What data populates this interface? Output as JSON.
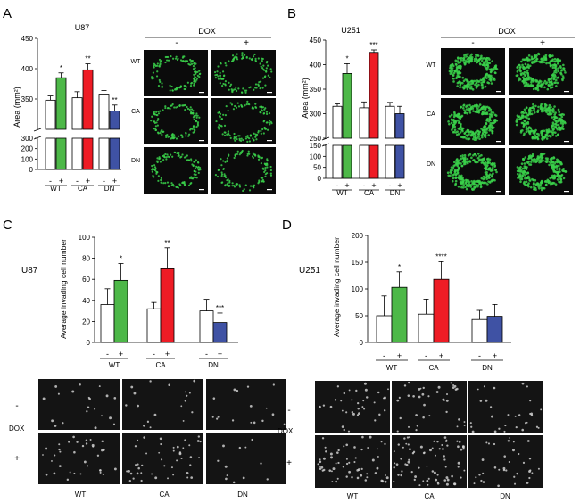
{
  "panels": {
    "A": {
      "letter": "A",
      "cell_line": "U87",
      "treatment": "DOX",
      "minus": "-",
      "plus": "+",
      "ylabel": "Area (mm²)",
      "groups": [
        "WT",
        "CA",
        "DN"
      ]
    },
    "B": {
      "letter": "B",
      "cell_line": "U251",
      "treatment": "DOX",
      "minus": "-",
      "plus": "+",
      "ylabel": "Area (mm²)",
      "groups": [
        "WT",
        "CA",
        "DN"
      ]
    },
    "C": {
      "letter": "C",
      "cell_line": "U87",
      "treatment": "DOX",
      "minus": "-",
      "plus": "+",
      "ylabel": "Average invading cell number",
      "groups": [
        "WT",
        "CA",
        "DN"
      ]
    },
    "D": {
      "letter": "D",
      "cell_line": "U251",
      "treatment": "DOX",
      "minus": "-",
      "plus": "+",
      "ylabel": "Average invading cell number",
      "groups": [
        "WT",
        "CA",
        "DN"
      ]
    }
  },
  "colors": {
    "WT": "#4db848",
    "CA": "#ee1c25",
    "DN": "#3f52a4",
    "control": "#ffffff",
    "spheroid": "#39d04a",
    "image_bg": "#0b0b0b"
  },
  "chart_data": [
    {
      "panel": "A",
      "type": "bar",
      "categories": [
        "WT",
        "CA",
        "DN"
      ],
      "subcategories": [
        "-",
        "+"
      ],
      "ylabel": "Area (mm²)",
      "ylim_lower": [
        0,
        300
      ],
      "ylim_upper": [
        300,
        450
      ],
      "yticks": [
        0,
        100,
        200,
        300,
        350,
        400,
        450
      ],
      "series": [
        {
          "name": "-",
          "values": [
            348,
            352,
            358
          ],
          "errors": [
            7,
            10,
            6
          ]
        },
        {
          "name": "+",
          "values": [
            385,
            398,
            330
          ],
          "errors": [
            8,
            10,
            10
          ]
        }
      ],
      "significance": [
        "*",
        "**",
        "**"
      ]
    },
    {
      "panel": "B",
      "type": "bar",
      "categories": [
        "WT",
        "CA",
        "DN"
      ],
      "subcategories": [
        "-",
        "+"
      ],
      "ylabel": "Area (mm²)",
      "ylim_lower": [
        0,
        150
      ],
      "ylim_upper": [
        250,
        450
      ],
      "yticks": [
        0,
        50,
        100,
        150,
        250,
        300,
        350,
        400,
        450
      ],
      "series": [
        {
          "name": "-",
          "values": [
            315,
            312,
            315
          ],
          "errors": [
            5,
            12,
            8
          ]
        },
        {
          "name": "+",
          "values": [
            382,
            425,
            300
          ],
          "errors": [
            20,
            5,
            15
          ]
        }
      ],
      "significance": [
        "*",
        "***",
        ""
      ]
    },
    {
      "panel": "C",
      "type": "bar",
      "categories": [
        "WT",
        "CA",
        "DN"
      ],
      "subcategories": [
        "-",
        "+"
      ],
      "ylabel": "Average invading cell number",
      "ylim": [
        0,
        100
      ],
      "yticks": [
        0,
        20,
        40,
        60,
        80,
        100
      ],
      "series": [
        {
          "name": "-",
          "values": [
            36,
            32,
            30
          ],
          "errors": [
            15,
            6,
            11
          ]
        },
        {
          "name": "+",
          "values": [
            59,
            70,
            19
          ],
          "errors": [
            16,
            20,
            9
          ]
        }
      ],
      "significance": [
        "*",
        "**",
        "***"
      ]
    },
    {
      "panel": "D",
      "type": "bar",
      "categories": [
        "WT",
        "CA",
        "DN"
      ],
      "subcategories": [
        "-",
        "+"
      ],
      "ylabel": "Average invading cell number",
      "ylim": [
        0,
        200
      ],
      "yticks": [
        0,
        50,
        100,
        150,
        200
      ],
      "series": [
        {
          "name": "-",
          "values": [
            50,
            53,
            43
          ],
          "errors": [
            37,
            28,
            17
          ]
        },
        {
          "name": "+",
          "values": [
            103,
            118,
            49
          ],
          "errors": [
            29,
            33,
            22
          ]
        }
      ],
      "significance": [
        "*",
        "****",
        ""
      ]
    }
  ]
}
